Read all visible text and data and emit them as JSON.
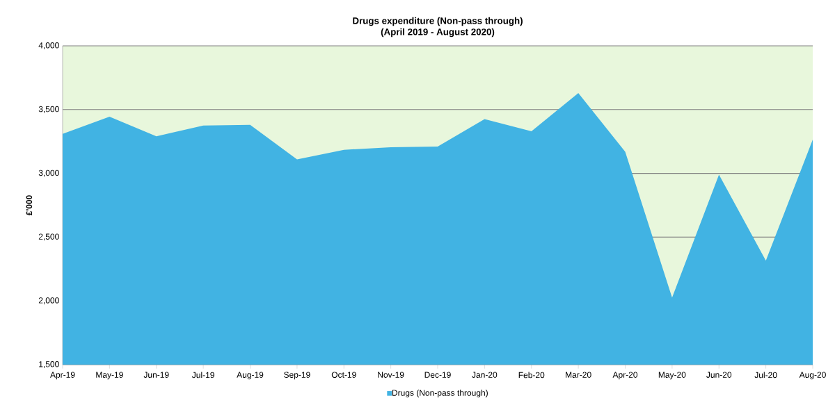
{
  "chart_data": {
    "type": "area",
    "title": "Drugs expenditure (Non-pass through)",
    "subtitle": "(April 2019 - August 2020)",
    "ylabel": "£'000",
    "categories": [
      "Apr-19",
      "May-19",
      "Jun-19",
      "Jul-19",
      "Aug-19",
      "Sep-19",
      "Oct-19",
      "Nov-19",
      "Dec-19",
      "Jan-20",
      "Feb-20",
      "Mar-20",
      "Apr-20",
      "May-20",
      "Jun-20",
      "Jul-20",
      "Aug-20"
    ],
    "series": [
      {
        "name": "Drugs (Non-pass through)",
        "color": "#41b3e3",
        "values": [
          3310,
          3445,
          3290,
          3375,
          3380,
          3110,
          3185,
          3205,
          3210,
          3425,
          3330,
          3630,
          3170,
          2025,
          2990,
          2315,
          3265
        ]
      }
    ],
    "ylim": [
      1500,
      4000
    ],
    "yticks": [
      {
        "value": 1500,
        "label": "1,500"
      },
      {
        "value": 2000,
        "label": "2,000"
      },
      {
        "value": 2500,
        "label": "2,500"
      },
      {
        "value": 3000,
        "label": "3,000"
      },
      {
        "value": 3500,
        "label": "3,500"
      },
      {
        "value": 4000,
        "label": "4,000"
      }
    ],
    "grid": "y",
    "legend": "bottom"
  }
}
